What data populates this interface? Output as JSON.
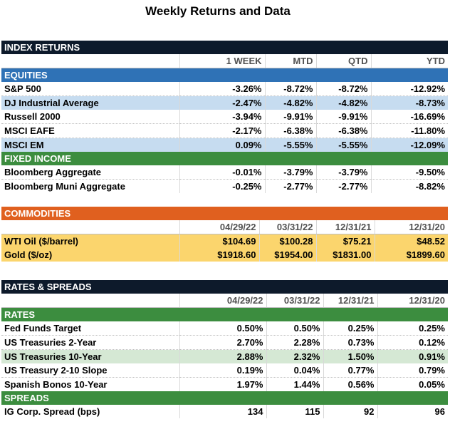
{
  "title": "Weekly Returns and Data",
  "index_returns": {
    "header": "INDEX RETURNS",
    "columns": [
      "1 WEEK",
      "MTD",
      "QTD",
      "YTD"
    ],
    "equities_label": "EQUITIES",
    "equities": [
      {
        "name": "S&P 500",
        "values": [
          "-3.26%",
          "-8.72%",
          "-8.72%",
          "-12.92%"
        ]
      },
      {
        "name": "DJ Industrial Average",
        "values": [
          "-2.47%",
          "-4.82%",
          "-4.82%",
          "-8.73%"
        ]
      },
      {
        "name": "Russell 2000",
        "values": [
          "-3.94%",
          "-9.91%",
          "-9.91%",
          "-16.69%"
        ]
      },
      {
        "name": "MSCI EAFE",
        "values": [
          "-2.17%",
          "-6.38%",
          "-6.38%",
          "-11.80%"
        ]
      },
      {
        "name": "MSCI EM",
        "values": [
          "0.09%",
          "-5.55%",
          "-5.55%",
          "-12.09%"
        ]
      }
    ],
    "fixed_income_label": "FIXED INCOME",
    "fixed_income": [
      {
        "name": "Bloomberg Aggregate",
        "values": [
          "-0.01%",
          "-3.79%",
          "-3.79%",
          "-9.50%"
        ]
      },
      {
        "name": "Bloomberg Muni Aggregate",
        "values": [
          "-0.25%",
          "-2.77%",
          "-2.77%",
          "-8.82%"
        ]
      }
    ]
  },
  "commodities": {
    "header": "COMMODITIES",
    "columns": [
      "04/29/22",
      "03/31/22",
      "12/31/21",
      "12/31/20"
    ],
    "rows": [
      {
        "name": "WTI Oil ($/barrel)",
        "values": [
          "$104.69",
          "$100.28",
          "$75.21",
          "$48.52"
        ]
      },
      {
        "name": "Gold ($/oz)",
        "values": [
          "$1918.60",
          "$1954.00",
          "$1831.00",
          "$1899.60"
        ]
      }
    ]
  },
  "rates_spreads": {
    "header": "RATES & SPREADS",
    "columns": [
      "04/29/22",
      "03/31/22",
      "12/31/21",
      "12/31/20"
    ],
    "rates_label": "RATES",
    "rates": [
      {
        "name": "Fed Funds Target",
        "values": [
          "0.50%",
          "0.50%",
          "0.25%",
          "0.25%"
        ]
      },
      {
        "name": "US Treasuries 2-Year",
        "values": [
          "2.70%",
          "2.28%",
          "0.73%",
          "0.12%"
        ]
      },
      {
        "name": "US Treasuries 10-Year",
        "values": [
          "2.88%",
          "2.32%",
          "1.50%",
          "0.91%"
        ]
      },
      {
        "name": "US Treasury 2-10 Slope",
        "values": [
          "0.19%",
          "0.04%",
          "0.77%",
          "0.79%"
        ]
      },
      {
        "name": "Spanish Bonos 10-Year",
        "values": [
          "1.97%",
          "1.44%",
          "0.56%",
          "0.05%"
        ]
      }
    ],
    "spreads_label": "SPREADS",
    "spreads": [
      {
        "name": "IG Corp. Spread (bps)",
        "values": [
          "134",
          "115",
          "92",
          "96"
        ]
      }
    ]
  }
}
